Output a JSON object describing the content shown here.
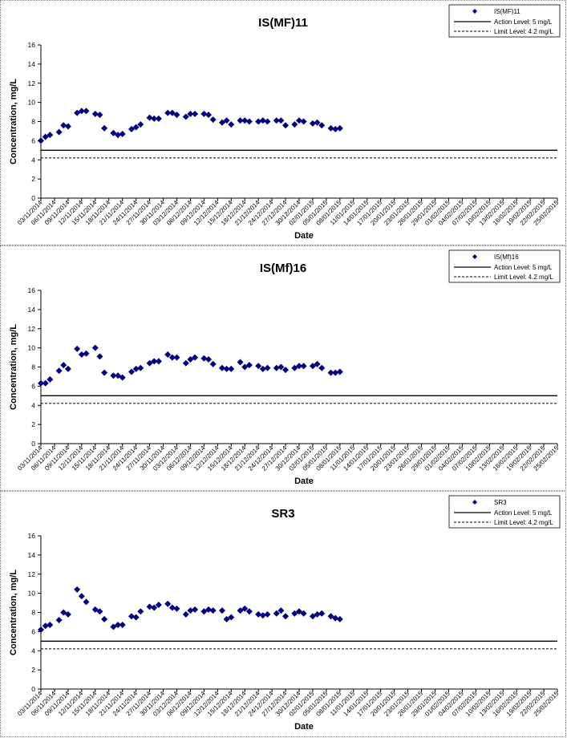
{
  "x_dates": [
    "03/11/2014",
    "06/11/2014",
    "09/11/2014",
    "12/11/2014",
    "15/11/2014",
    "18/11/2014",
    "21/11/2014",
    "24/11/2014",
    "27/11/2014",
    "30/11/2014",
    "03/12/2014",
    "06/12/2014",
    "09/12/2014",
    "12/12/2014",
    "15/12/2014",
    "18/12/2014",
    "21/12/2014",
    "24/12/2014",
    "27/12/2014",
    "30/12/2014",
    "02/01/2015",
    "05/01/2015",
    "08/01/2015",
    "11/01/2015",
    "14/01/2015",
    "17/01/2015",
    "20/01/2015",
    "23/01/2015",
    "26/01/2015",
    "29/01/2015",
    "01/02/2015",
    "04/02/2015",
    "07/02/2015",
    "10/02/2015",
    "13/02/2015",
    "16/02/2015",
    "19/02/2015",
    "22/02/2015",
    "25/02/2015"
  ],
  "chart_data": [
    {
      "type": "scatter",
      "title": "IS(MF)11",
      "xlabel": "Date",
      "ylabel": "Concentration, mg/L",
      "ylim": [
        0,
        16
      ],
      "yticks": [
        0,
        2,
        4,
        6,
        8,
        10,
        12,
        14,
        16
      ],
      "legend_position": "top-right",
      "series": [
        {
          "name": "IS(MF)11",
          "color": "#000080",
          "marker": "diamond",
          "points": [
            [
              "03/11/2014",
              6.0
            ],
            [
              "04/11/2014",
              6.4
            ],
            [
              "05/11/2014",
              6.6
            ],
            [
              "07/11/2014",
              6.9
            ],
            [
              "08/11/2014",
              7.6
            ],
            [
              "09/11/2014",
              7.5
            ],
            [
              "11/11/2014",
              8.9
            ],
            [
              "12/11/2014",
              9.1
            ],
            [
              "13/11/2014",
              9.1
            ],
            [
              "15/11/2014",
              8.8
            ],
            [
              "16/11/2014",
              8.7
            ],
            [
              "17/11/2014",
              7.3
            ],
            [
              "19/11/2014",
              6.8
            ],
            [
              "20/11/2014",
              6.6
            ],
            [
              "21/11/2014",
              6.7
            ],
            [
              "23/11/2014",
              7.2
            ],
            [
              "24/11/2014",
              7.4
            ],
            [
              "25/11/2014",
              7.7
            ],
            [
              "27/11/2014",
              8.4
            ],
            [
              "28/11/2014",
              8.3
            ],
            [
              "29/11/2014",
              8.3
            ],
            [
              "01/12/2014",
              8.9
            ],
            [
              "02/12/2014",
              8.9
            ],
            [
              "03/12/2014",
              8.7
            ],
            [
              "05/12/2014",
              8.5
            ],
            [
              "06/12/2014",
              8.8
            ],
            [
              "07/12/2014",
              8.8
            ],
            [
              "09/12/2014",
              8.8
            ],
            [
              "10/12/2014",
              8.7
            ],
            [
              "11/12/2014",
              8.2
            ],
            [
              "13/12/2014",
              7.9
            ],
            [
              "14/12/2014",
              8.1
            ],
            [
              "15/12/2014",
              7.7
            ],
            [
              "17/12/2014",
              8.1
            ],
            [
              "18/12/2014",
              8.1
            ],
            [
              "19/12/2014",
              8.0
            ],
            [
              "21/12/2014",
              8.0
            ],
            [
              "22/12/2014",
              8.1
            ],
            [
              "23/12/2014",
              8.0
            ],
            [
              "25/12/2014",
              8.1
            ],
            [
              "26/12/2014",
              8.1
            ],
            [
              "27/12/2014",
              7.6
            ],
            [
              "29/12/2014",
              7.7
            ],
            [
              "30/12/2014",
              8.1
            ],
            [
              "31/12/2014",
              8.0
            ],
            [
              "02/01/2015",
              7.8
            ],
            [
              "03/01/2015",
              7.9
            ],
            [
              "04/01/2015",
              7.6
            ],
            [
              "06/01/2015",
              7.3
            ],
            [
              "07/01/2015",
              7.2
            ],
            [
              "08/01/2015",
              7.3
            ]
          ]
        },
        {
          "name": "Action Level: 5 mg/L",
          "color": "#000000",
          "style": "solid",
          "value": 5
        },
        {
          "name": "Limit Level: 4.2 mg/L",
          "color": "#000000",
          "style": "dashed",
          "value": 4.2
        }
      ]
    },
    {
      "type": "scatter",
      "title": "IS(Mf)16",
      "xlabel": "Date",
      "ylabel": "Concentration, mg/L",
      "ylim": [
        0,
        16
      ],
      "yticks": [
        0,
        2,
        4,
        6,
        8,
        10,
        12,
        14,
        16
      ],
      "legend_position": "top-right",
      "series": [
        {
          "name": "IS(Mf)16",
          "color": "#000080",
          "marker": "diamond",
          "points": [
            [
              "03/11/2014",
              6.3
            ],
            [
              "04/11/2014",
              6.3
            ],
            [
              "05/11/2014",
              6.7
            ],
            [
              "07/11/2014",
              7.6
            ],
            [
              "08/11/2014",
              8.2
            ],
            [
              "09/11/2014",
              7.8
            ],
            [
              "11/11/2014",
              9.9
            ],
            [
              "12/11/2014",
              9.3
            ],
            [
              "13/11/2014",
              9.4
            ],
            [
              "15/11/2014",
              10.0
            ],
            [
              "16/11/2014",
              9.1
            ],
            [
              "17/11/2014",
              7.4
            ],
            [
              "19/11/2014",
              7.1
            ],
            [
              "20/11/2014",
              7.1
            ],
            [
              "21/11/2014",
              6.9
            ],
            [
              "23/11/2014",
              7.5
            ],
            [
              "24/11/2014",
              7.8
            ],
            [
              "25/11/2014",
              7.9
            ],
            [
              "27/11/2014",
              8.4
            ],
            [
              "28/11/2014",
              8.6
            ],
            [
              "29/11/2014",
              8.6
            ],
            [
              "01/12/2014",
              9.3
            ],
            [
              "02/12/2014",
              9.0
            ],
            [
              "03/12/2014",
              9.0
            ],
            [
              "05/12/2014",
              8.4
            ],
            [
              "06/12/2014",
              8.8
            ],
            [
              "07/12/2014",
              9.0
            ],
            [
              "09/12/2014",
              8.9
            ],
            [
              "10/12/2014",
              8.8
            ],
            [
              "11/12/2014",
              8.3
            ],
            [
              "13/12/2014",
              7.9
            ],
            [
              "14/12/2014",
              7.8
            ],
            [
              "15/12/2014",
              7.8
            ],
            [
              "17/12/2014",
              8.5
            ],
            [
              "18/12/2014",
              8.0
            ],
            [
              "19/12/2014",
              8.2
            ],
            [
              "21/12/2014",
              8.1
            ],
            [
              "22/12/2014",
              7.8
            ],
            [
              "23/12/2014",
              7.9
            ],
            [
              "25/12/2014",
              7.9
            ],
            [
              "26/12/2014",
              8.0
            ],
            [
              "27/12/2014",
              7.7
            ],
            [
              "29/12/2014",
              7.9
            ],
            [
              "30/12/2014",
              8.1
            ],
            [
              "31/12/2014",
              8.1
            ],
            [
              "02/01/2015",
              8.1
            ],
            [
              "03/01/2015",
              8.3
            ],
            [
              "04/01/2015",
              7.9
            ],
            [
              "06/01/2015",
              7.4
            ],
            [
              "07/01/2015",
              7.4
            ],
            [
              "08/01/2015",
              7.5
            ]
          ]
        },
        {
          "name": "Action Level: 5 mg/L",
          "color": "#000000",
          "style": "solid",
          "value": 5
        },
        {
          "name": "Limit Level: 4.2 mg/L",
          "color": "#000000",
          "style": "dashed",
          "value": 4.2
        }
      ]
    },
    {
      "type": "scatter",
      "title": "SR3",
      "xlabel": "Date",
      "ylabel": "Concentration, mg/L",
      "ylim": [
        0,
        16
      ],
      "yticks": [
        0,
        2,
        4,
        6,
        8,
        10,
        12,
        14,
        16
      ],
      "legend_position": "top-right",
      "series": [
        {
          "name": "SR3",
          "color": "#000080",
          "marker": "diamond",
          "points": [
            [
              "03/11/2014",
              6.2
            ],
            [
              "04/11/2014",
              6.6
            ],
            [
              "05/11/2014",
              6.7
            ],
            [
              "07/11/2014",
              7.2
            ],
            [
              "08/11/2014",
              8.0
            ],
            [
              "09/11/2014",
              7.8
            ],
            [
              "11/11/2014",
              10.4
            ],
            [
              "12/11/2014",
              9.7
            ],
            [
              "13/11/2014",
              9.1
            ],
            [
              "15/11/2014",
              8.3
            ],
            [
              "16/11/2014",
              8.1
            ],
            [
              "17/11/2014",
              7.3
            ],
            [
              "19/11/2014",
              6.5
            ],
            [
              "20/11/2014",
              6.7
            ],
            [
              "21/11/2014",
              6.7
            ],
            [
              "23/11/2014",
              7.6
            ],
            [
              "24/11/2014",
              7.5
            ],
            [
              "25/11/2014",
              8.1
            ],
            [
              "27/11/2014",
              8.6
            ],
            [
              "28/11/2014",
              8.5
            ],
            [
              "29/11/2014",
              8.8
            ],
            [
              "01/12/2014",
              8.9
            ],
            [
              "02/12/2014",
              8.5
            ],
            [
              "03/12/2014",
              8.4
            ],
            [
              "05/12/2014",
              7.8
            ],
            [
              "06/12/2014",
              8.2
            ],
            [
              "07/12/2014",
              8.3
            ],
            [
              "09/12/2014",
              8.1
            ],
            [
              "10/12/2014",
              8.3
            ],
            [
              "11/12/2014",
              8.2
            ],
            [
              "13/12/2014",
              8.2
            ],
            [
              "14/12/2014",
              7.3
            ],
            [
              "15/12/2014",
              7.5
            ],
            [
              "17/12/2014",
              8.2
            ],
            [
              "18/12/2014",
              8.4
            ],
            [
              "19/12/2014",
              8.1
            ],
            [
              "21/12/2014",
              7.8
            ],
            [
              "22/12/2014",
              7.7
            ],
            [
              "23/12/2014",
              7.8
            ],
            [
              "25/12/2014",
              7.9
            ],
            [
              "26/12/2014",
              8.2
            ],
            [
              "27/12/2014",
              7.6
            ],
            [
              "29/12/2014",
              7.9
            ],
            [
              "30/12/2014",
              8.1
            ],
            [
              "31/12/2014",
              7.9
            ],
            [
              "02/01/2015",
              7.6
            ],
            [
              "03/01/2015",
              7.8
            ],
            [
              "04/01/2015",
              7.9
            ],
            [
              "06/01/2015",
              7.6
            ],
            [
              "07/01/2015",
              7.4
            ],
            [
              "08/01/2015",
              7.3
            ]
          ]
        },
        {
          "name": "Action Level: 5 mg/L",
          "color": "#000000",
          "style": "solid",
          "value": 5
        },
        {
          "name": "Limit Level: 4.2 mg/L",
          "color": "#000000",
          "style": "dashed",
          "value": 4.2
        }
      ]
    }
  ]
}
